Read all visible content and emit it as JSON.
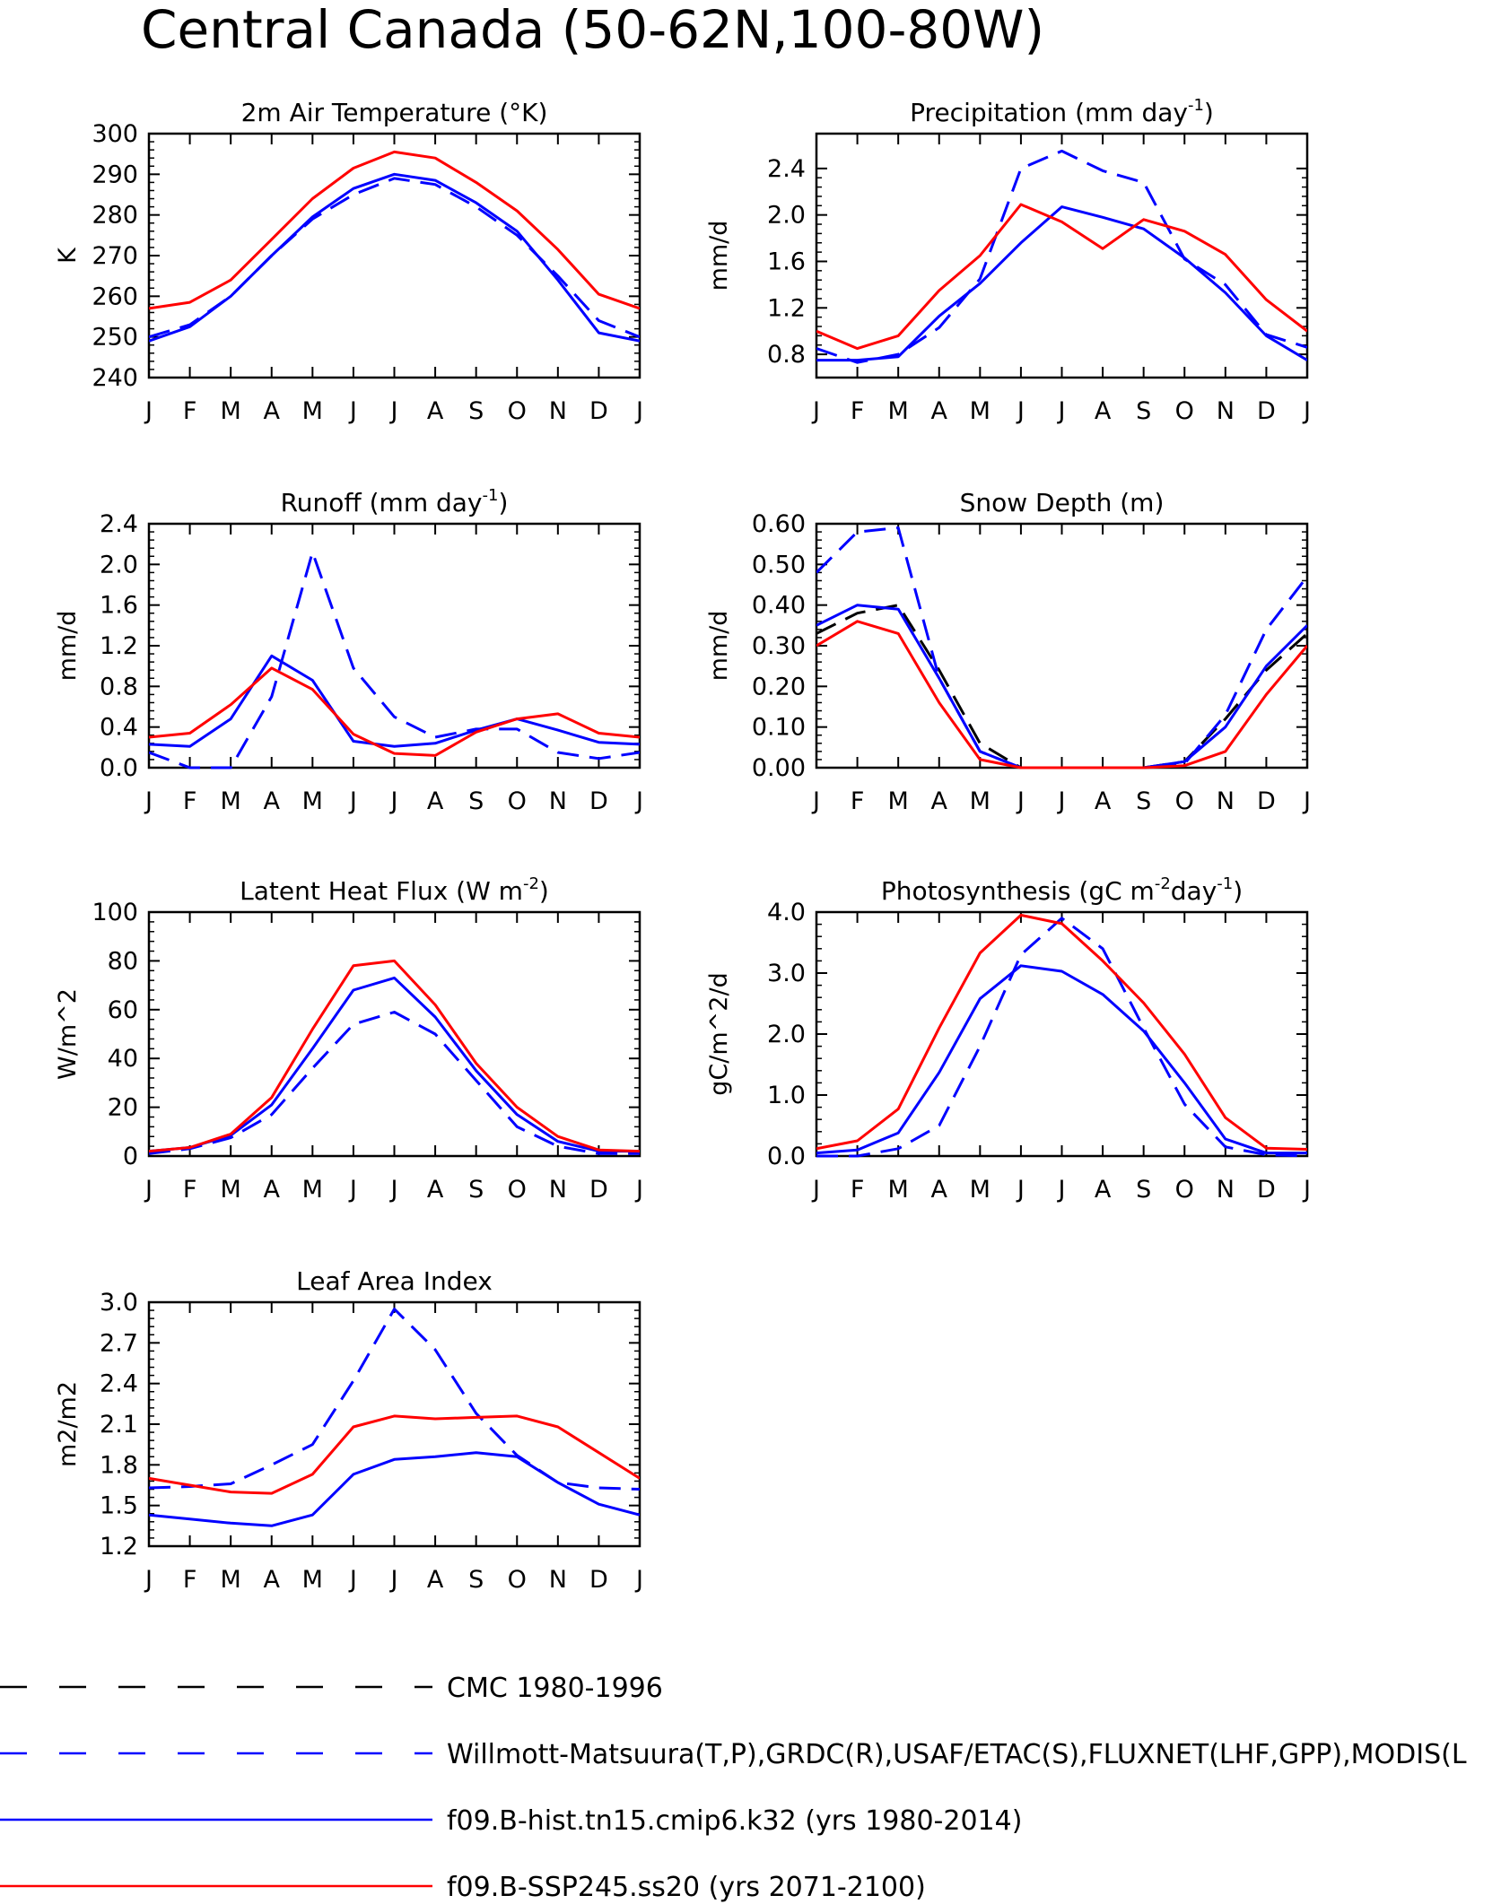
{
  "main_title": "Central Canada (50-62N,100-80W)",
  "months": [
    "J",
    "F",
    "M",
    "A",
    "M",
    "J",
    "J",
    "A",
    "S",
    "O",
    "N",
    "D",
    "J"
  ],
  "colors": {
    "cmc": "#000000",
    "obs": "#0000ff",
    "hist": "#0000ff",
    "ssp": "#ff0000"
  },
  "legend": [
    {
      "key": "cmc",
      "label": "CMC 1980-1996",
      "color": "#000000",
      "dash": true
    },
    {
      "key": "obs",
      "label": "Willmott-Matsuura(T,P),GRDC(R),USAF/ETAC(S),FLUXNET(LHF,GPP),MODIS(L",
      "color": "#0000ff",
      "dash": true
    },
    {
      "key": "hist",
      "label": "f09.B-hist.tn15.cmip6.k32 (yrs 1980-2014)",
      "color": "#0000ff",
      "dash": false
    },
    {
      "key": "ssp",
      "label": "f09.B-SSP245.ss20 (yrs 2071-2100)",
      "color": "#ff0000",
      "dash": false
    }
  ],
  "chart_data": [
    {
      "type": "line",
      "title": "2m Air Temperature (°K)",
      "ylabel": "K",
      "ylim": [
        240,
        300
      ],
      "yticks": [
        240,
        250,
        260,
        270,
        280,
        290,
        300
      ],
      "yticklabels": [
        "240",
        "250",
        "260",
        "270",
        "280",
        "290",
        "300"
      ],
      "x": [
        "J",
        "F",
        "M",
        "A",
        "M",
        "J",
        "J",
        "A",
        "S",
        "O",
        "N",
        "D",
        "J"
      ],
      "series": [
        {
          "key": "obs",
          "values": [
            250,
            253,
            260,
            270,
            279,
            285,
            289,
            287.5,
            282,
            275,
            265,
            254,
            250
          ]
        },
        {
          "key": "hist",
          "values": [
            249,
            252.5,
            260,
            270,
            279.5,
            286.5,
            290,
            288.5,
            283,
            276,
            264,
            251,
            249
          ]
        },
        {
          "key": "ssp",
          "values": [
            257,
            258.5,
            264,
            274,
            284,
            291.5,
            295.5,
            294,
            288,
            281,
            271.5,
            260.5,
            257
          ]
        }
      ]
    },
    {
      "type": "line",
      "title": "Precipitation (mm day",
      "title_sup": "-1",
      "title_end": ")",
      "ylabel": "mm/d",
      "ylim": [
        0.6,
        2.7
      ],
      "yticks": [
        0.8,
        1.2,
        1.6,
        2.0,
        2.4
      ],
      "yticklabels": [
        "0.8",
        "1.2",
        "1.6",
        "2.0",
        "2.4"
      ],
      "x": [
        "J",
        "F",
        "M",
        "A",
        "M",
        "J",
        "J",
        "A",
        "S",
        "O",
        "N",
        "D",
        "J"
      ],
      "series": [
        {
          "key": "obs",
          "values": [
            0.85,
            0.73,
            0.8,
            1.03,
            1.45,
            2.4,
            2.55,
            2.38,
            2.28,
            1.62,
            1.4,
            0.97,
            0.86
          ]
        },
        {
          "key": "hist",
          "values": [
            0.75,
            0.75,
            0.78,
            1.13,
            1.41,
            1.76,
            2.07,
            1.98,
            1.88,
            1.63,
            1.33,
            0.96,
            0.75
          ]
        },
        {
          "key": "ssp",
          "values": [
            1.0,
            0.85,
            0.96,
            1.35,
            1.65,
            2.09,
            1.94,
            1.71,
            1.96,
            1.86,
            1.66,
            1.27,
            1.0
          ]
        }
      ]
    },
    {
      "type": "line",
      "title": "Runoff (mm day",
      "title_sup": "-1",
      "title_end": ")",
      "ylabel": "mm/d",
      "ylim": [
        0,
        2.4
      ],
      "yticks": [
        0.0,
        0.4,
        0.8,
        1.2,
        1.6,
        2.0,
        2.4
      ],
      "yticklabels": [
        "0.0",
        "0.4",
        "0.8",
        "1.2",
        "1.6",
        "2.0",
        "2.4"
      ],
      "x": [
        "J",
        "F",
        "M",
        "A",
        "M",
        "J",
        "J",
        "A",
        "S",
        "O",
        "N",
        "D",
        "J"
      ],
      "series": [
        {
          "key": "obs",
          "values": [
            0.15,
            0.0,
            0.0,
            0.7,
            2.12,
            0.98,
            0.5,
            0.3,
            0.38,
            0.38,
            0.15,
            0.09,
            0.15
          ]
        },
        {
          "key": "hist",
          "values": [
            0.23,
            0.21,
            0.48,
            1.1,
            0.86,
            0.26,
            0.21,
            0.24,
            0.37,
            0.48,
            0.37,
            0.25,
            0.23
          ]
        },
        {
          "key": "ssp",
          "values": [
            0.3,
            0.34,
            0.62,
            0.98,
            0.77,
            0.33,
            0.14,
            0.12,
            0.35,
            0.48,
            0.53,
            0.34,
            0.3
          ]
        }
      ]
    },
    {
      "type": "line",
      "title": "Snow Depth (m)",
      "ylabel": "mm/d",
      "ylim": [
        0,
        0.6
      ],
      "yticks": [
        0.0,
        0.1,
        0.2,
        0.3,
        0.4,
        0.5,
        0.6
      ],
      "yticklabels": [
        "0.00",
        "0.10",
        "0.20",
        "0.30",
        "0.40",
        "0.50",
        "0.60"
      ],
      "x": [
        "J",
        "F",
        "M",
        "A",
        "M",
        "J",
        "J",
        "A",
        "S",
        "O",
        "N",
        "D",
        "J"
      ],
      "series": [
        {
          "key": "cmc",
          "values": [
            0.33,
            0.38,
            0.4,
            0.24,
            0.06,
            0.0,
            0.0,
            0.0,
            0.0,
            0.015,
            0.12,
            0.24,
            0.33
          ]
        },
        {
          "key": "obs",
          "values": [
            0.48,
            0.58,
            0.59,
            0.22,
            0.04,
            0.0,
            0.0,
            0.0,
            0.0,
            0.01,
            0.13,
            0.34,
            0.47
          ]
        },
        {
          "key": "hist",
          "values": [
            0.35,
            0.4,
            0.39,
            0.22,
            0.04,
            0.0,
            0.0,
            0.0,
            0.0,
            0.015,
            0.1,
            0.25,
            0.35
          ]
        },
        {
          "key": "ssp",
          "values": [
            0.3,
            0.36,
            0.33,
            0.16,
            0.02,
            0.0,
            0.0,
            0.0,
            0.0,
            0.005,
            0.04,
            0.18,
            0.3
          ]
        }
      ]
    },
    {
      "type": "line",
      "title": "Latent Heat Flux (W m",
      "title_sup": "-2",
      "title_end": ")",
      "ylabel": "W/m^2",
      "ylim": [
        0,
        100
      ],
      "yticks": [
        0,
        20,
        40,
        60,
        80,
        100
      ],
      "yticklabels": [
        "0",
        "20",
        "40",
        "60",
        "80",
        "100"
      ],
      "x": [
        "J",
        "F",
        "M",
        "A",
        "M",
        "J",
        "J",
        "A",
        "S",
        "O",
        "N",
        "D",
        "J"
      ],
      "series": [
        {
          "key": "obs",
          "values": [
            1,
            3,
            7.5,
            17,
            36,
            54,
            59,
            50,
            31,
            12,
            4,
            1,
            1
          ]
        },
        {
          "key": "hist",
          "values": [
            2,
            3.5,
            8.5,
            21,
            44,
            68,
            73,
            57,
            35,
            17,
            6,
            2,
            2
          ]
        },
        {
          "key": "ssp",
          "values": [
            2,
            3.5,
            9,
            24,
            52,
            78,
            80,
            62,
            38,
            20,
            8,
            2.5,
            2
          ]
        }
      ]
    },
    {
      "type": "line",
      "title": "Photosynthesis (gC m",
      "title_sup": "-2",
      "title_mid": "day",
      "title_sup2": "-1",
      "title_end": ")",
      "ylabel": "gC/m^2/d",
      "ylim": [
        0,
        4
      ],
      "yticks": [
        0,
        1,
        2,
        3,
        4
      ],
      "yticklabels": [
        "0.0",
        "1.0",
        "2.0",
        "3.0",
        "4.0"
      ],
      "x": [
        "J",
        "F",
        "M",
        "A",
        "M",
        "J",
        "J",
        "A",
        "S",
        "O",
        "N",
        "D",
        "J"
      ],
      "series": [
        {
          "key": "obs",
          "values": [
            0.0,
            0.0,
            0.12,
            0.5,
            1.8,
            3.3,
            3.9,
            3.4,
            2.1,
            0.85,
            0.15,
            0.02,
            0.0
          ]
        },
        {
          "key": "hist",
          "values": [
            0.05,
            0.1,
            0.38,
            1.37,
            2.58,
            3.12,
            3.03,
            2.65,
            2.05,
            1.2,
            0.28,
            0.05,
            0.05
          ]
        },
        {
          "key": "ssp",
          "values": [
            0.12,
            0.25,
            0.77,
            2.1,
            3.33,
            3.95,
            3.81,
            3.2,
            2.51,
            1.67,
            0.63,
            0.13,
            0.11
          ]
        }
      ]
    },
    {
      "type": "line",
      "title": "Leaf Area Index",
      "ylabel": "m2/m2",
      "ylim": [
        1.2,
        3.0
      ],
      "yticks": [
        1.2,
        1.5,
        1.8,
        2.1,
        2.4,
        2.7,
        3.0
      ],
      "yticklabels": [
        "1.2",
        "1.5",
        "1.8",
        "2.1",
        "2.4",
        "2.7",
        "3.0"
      ],
      "x": [
        "J",
        "F",
        "M",
        "A",
        "M",
        "J",
        "J",
        "A",
        "S",
        "O",
        "N",
        "D",
        "J"
      ],
      "series": [
        {
          "key": "obs",
          "values": [
            1.63,
            1.64,
            1.66,
            1.8,
            1.95,
            2.42,
            2.95,
            2.65,
            2.18,
            1.87,
            1.67,
            1.63,
            1.62
          ]
        },
        {
          "key": "hist",
          "values": [
            1.43,
            1.4,
            1.37,
            1.35,
            1.43,
            1.73,
            1.84,
            1.86,
            1.89,
            1.86,
            1.67,
            1.51,
            1.43
          ]
        },
        {
          "key": "ssp",
          "values": [
            1.7,
            1.65,
            1.6,
            1.59,
            1.73,
            2.08,
            2.16,
            2.14,
            2.15,
            2.16,
            2.08,
            1.89,
            1.7
          ]
        }
      ]
    }
  ]
}
